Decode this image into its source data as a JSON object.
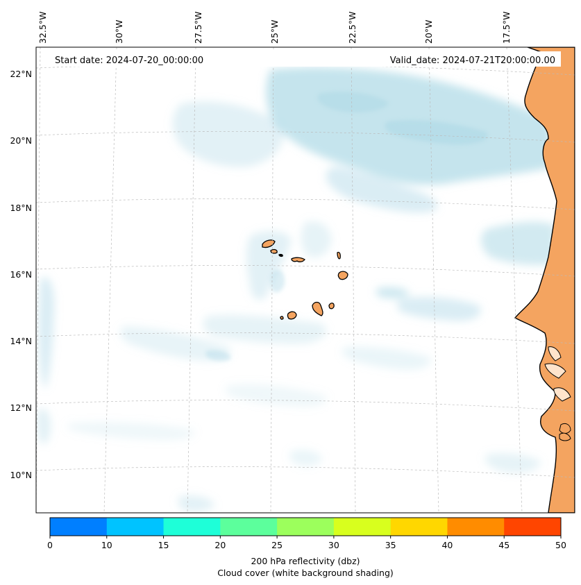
{
  "map": {
    "start_date": "Start date: 2024-07-20_00:00:00",
    "valid_date": "Valid_date: 2024-07-21T20:00:00.00",
    "lon_labels": [
      "32.5°W",
      "30°W",
      "27.5°W",
      "25°W",
      "22.5°W",
      "20°W",
      "17.5°W"
    ],
    "lat_labels": [
      "22°N",
      "20°N",
      "18°N",
      "16°N",
      "14°N",
      "12°N",
      "10°N"
    ],
    "region": "Cabo Verde / West African coast",
    "land_fill_color": "#f4a460",
    "cloud_color": "#add8e6",
    "coastline_color": "#000000"
  },
  "colorbar": {
    "tick_labels": [
      "0",
      "10",
      "15",
      "20",
      "25",
      "30",
      "35",
      "40",
      "45",
      "50"
    ],
    "colors": [
      "#007fff",
      "#00c3ff",
      "#1effd8",
      "#5cff9c",
      "#9cff5c",
      "#d8ff1e",
      "#ffd700",
      "#ff8c00",
      "#ff4500"
    ],
    "label_line1": "200 hPa reflectivity (dbz)",
    "label_line2": "Cloud cover (white background shading)"
  }
}
